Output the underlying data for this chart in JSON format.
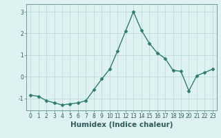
{
  "x": [
    0,
    1,
    2,
    3,
    4,
    5,
    6,
    7,
    8,
    9,
    10,
    11,
    12,
    13,
    14,
    15,
    16,
    17,
    18,
    19,
    20,
    21,
    22,
    23
  ],
  "y": [
    -0.85,
    -0.9,
    -1.1,
    -1.2,
    -1.3,
    -1.25,
    -1.2,
    -1.1,
    -0.6,
    -0.1,
    0.35,
    1.2,
    2.1,
    3.0,
    2.15,
    1.55,
    1.1,
    0.85,
    0.3,
    0.25,
    -0.65,
    0.05,
    0.2,
    0.35
  ],
  "line_color": "#2d7d6e",
  "marker": "D",
  "marker_size": 2.5,
  "bg_color": "#dff2f2",
  "grid_color": "#c4dede",
  "xlabel": "Humidex (Indice chaleur)",
  "xlim": [
    -0.5,
    23.5
  ],
  "ylim": [
    -1.55,
    3.35
  ],
  "yticks": [
    -1,
    0,
    1,
    2,
    3
  ],
  "xticks": [
    0,
    1,
    2,
    3,
    4,
    5,
    6,
    7,
    8,
    9,
    10,
    11,
    12,
    13,
    14,
    15,
    16,
    17,
    18,
    19,
    20,
    21,
    22,
    23
  ],
  "tick_fontsize": 5.5,
  "xlabel_fontsize": 7.5,
  "line_width": 1.0
}
